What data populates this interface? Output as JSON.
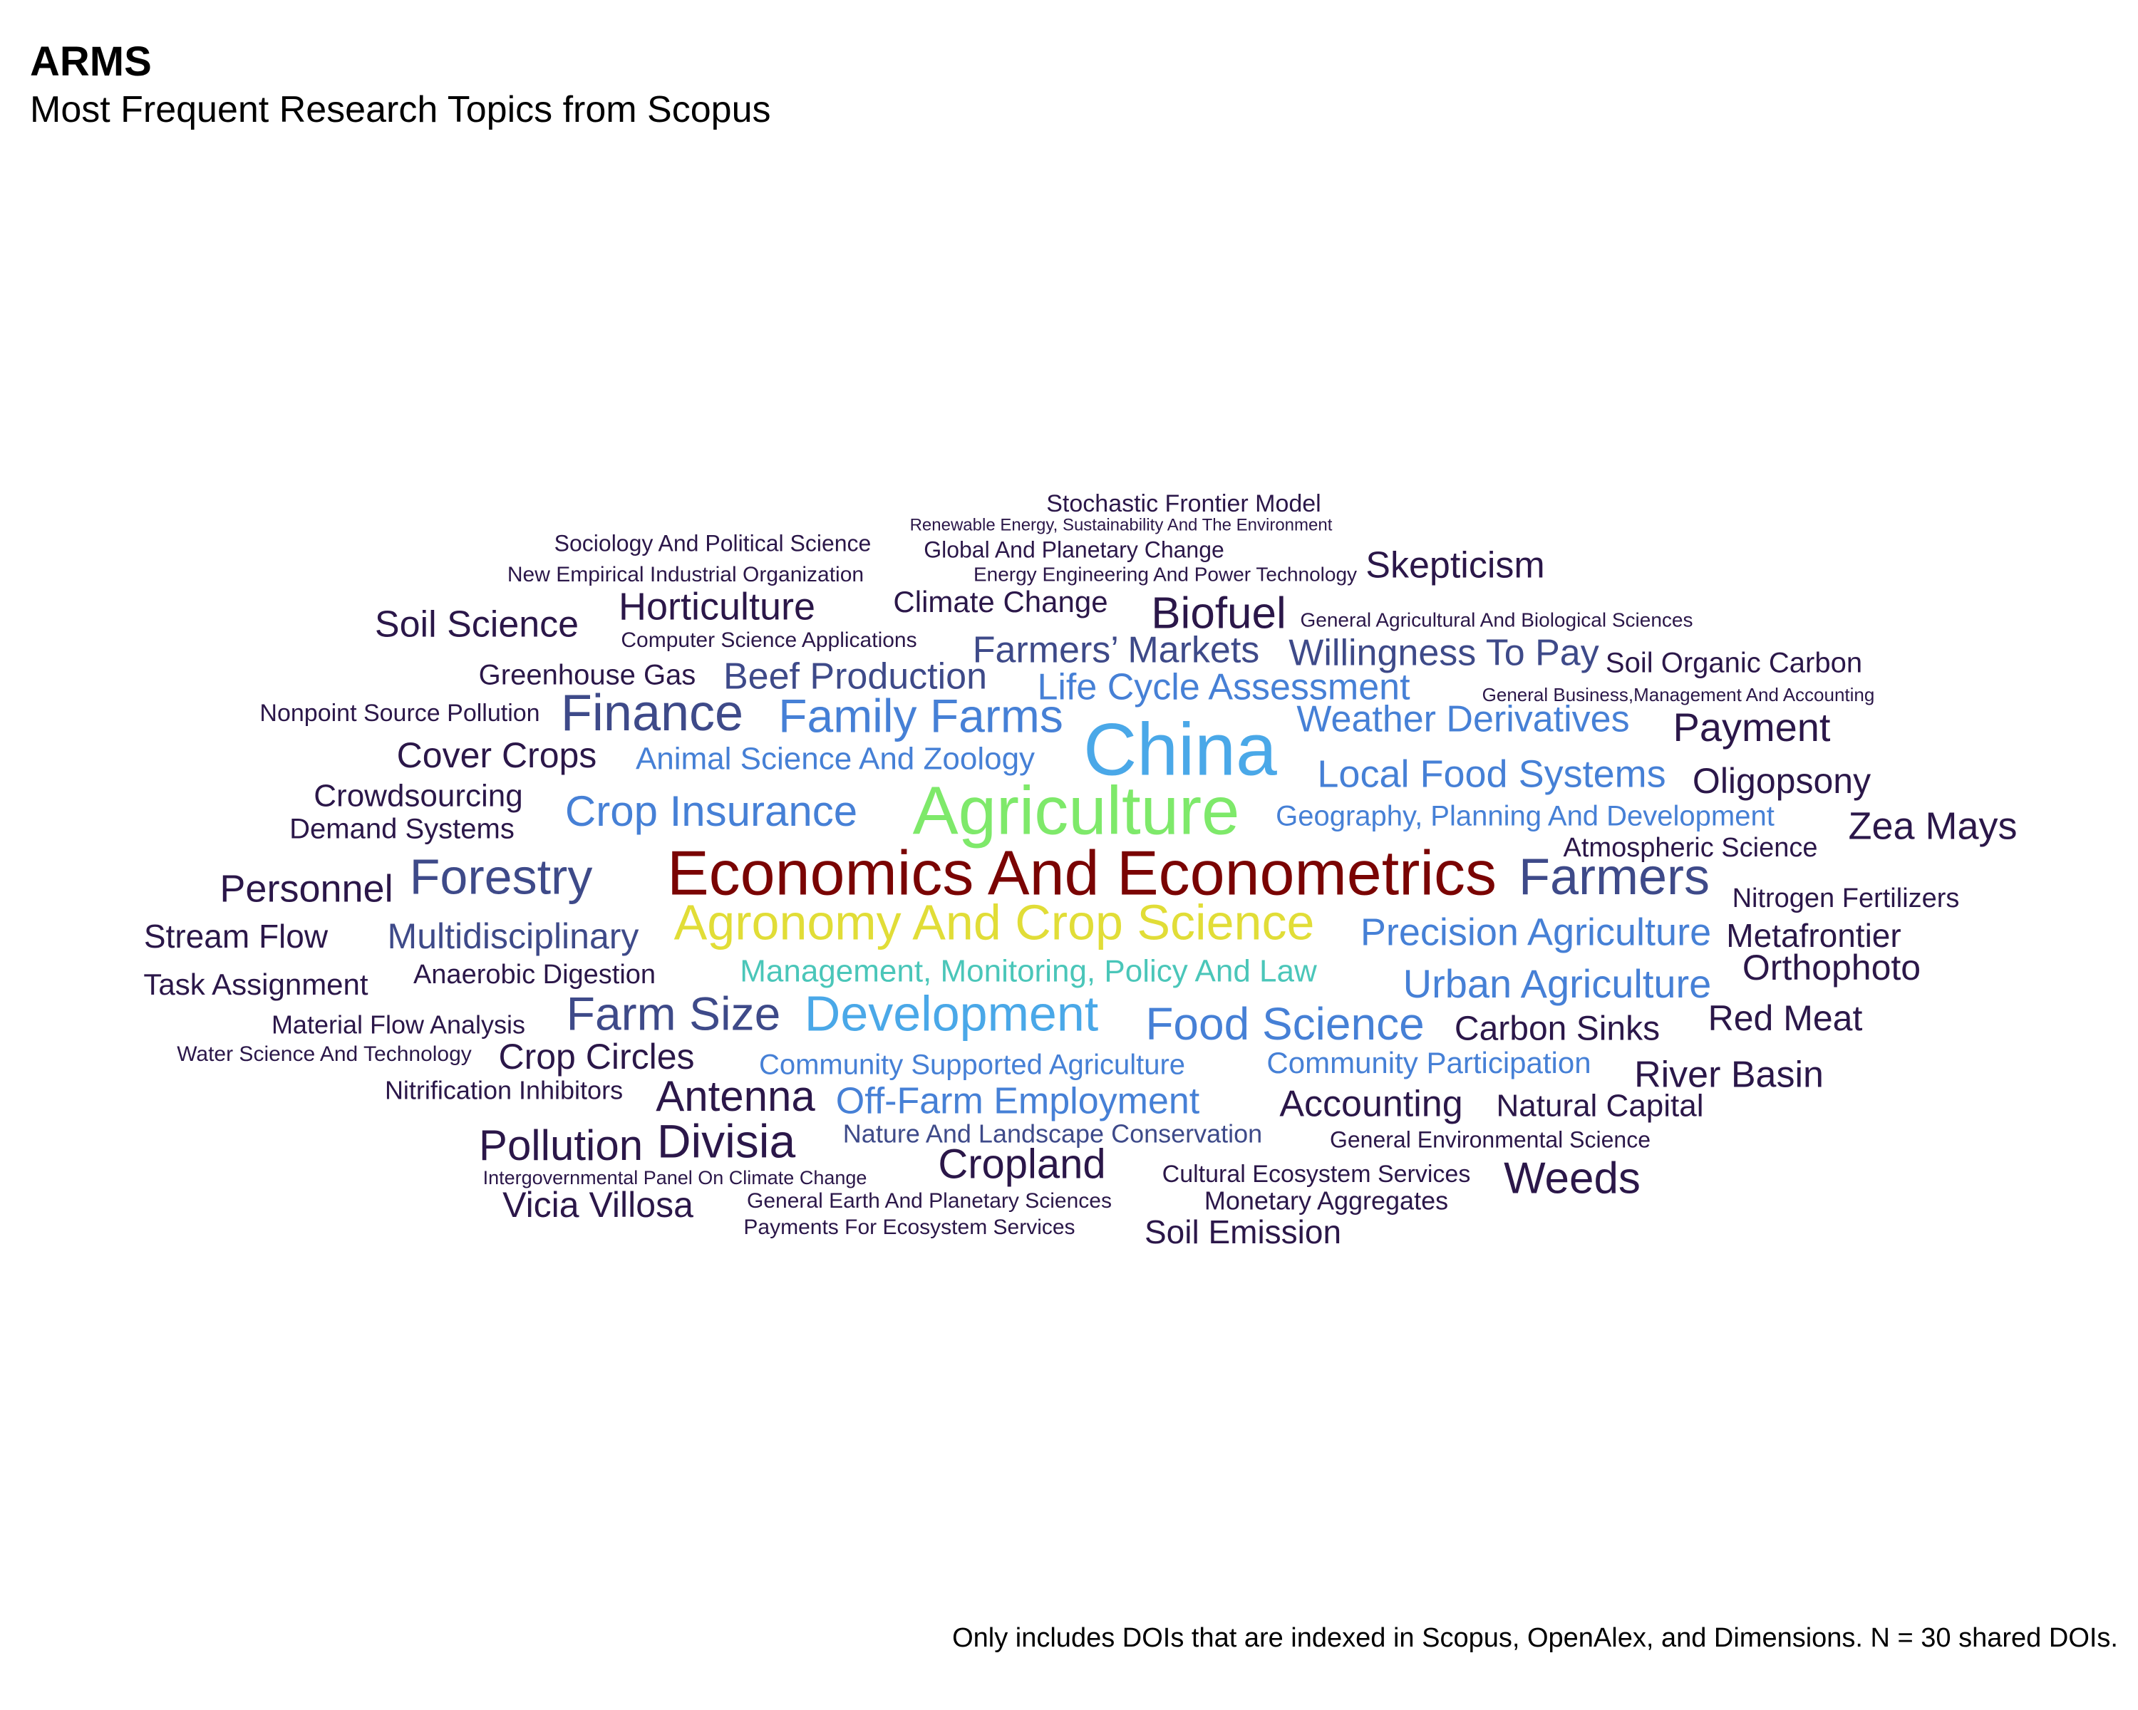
{
  "header": {
    "title": "ARMS",
    "subtitle": "Most Frequent Research Topics from Scopus"
  },
  "footer": {
    "caption": "Only includes DOIs that are indexed in Scopus, OpenAlex, and Dimensions. N = 30 shared DOIs."
  },
  "colors": {
    "darkred": "#7a0403",
    "yellow": "#e1dd37",
    "green": "#7ee96a",
    "teal": "#4ac6b9",
    "lightblue": "#4aa8e8",
    "blue": "#4680d6",
    "indigo": "#3e4a89",
    "darkpurple": "#2b1749"
  },
  "chart_data": {
    "type": "wordcloud",
    "words": [
      {
        "text": "Economics And Econometrics",
        "rank": 1,
        "color": "#7a0403"
      },
      {
        "text": "Agriculture",
        "rank": 2,
        "color": "#7ee96a"
      },
      {
        "text": "Agronomy And Crop Science",
        "rank": 3,
        "color": "#e1dd37"
      },
      {
        "text": "China",
        "rank": 4,
        "color": "#4aa8e8"
      },
      {
        "text": "Management, Monitoring, Policy And Law",
        "rank": 5,
        "color": "#4ac6b9"
      },
      {
        "text": "Development",
        "rank": 6,
        "color": "#4aa8e8"
      },
      {
        "text": "Family Farms",
        "rank": 7,
        "color": "#4680d6"
      },
      {
        "text": "Food Science",
        "rank": 8,
        "color": "#4680d6"
      },
      {
        "text": "Crop Insurance",
        "rank": 9,
        "color": "#4680d6"
      },
      {
        "text": "Local Food Systems",
        "rank": 10,
        "color": "#4680d6"
      },
      {
        "text": "Life Cycle Assessment",
        "rank": 11,
        "color": "#4680d6"
      },
      {
        "text": "Weather Derivatives",
        "rank": 12,
        "color": "#4680d6"
      },
      {
        "text": "Animal Science And Zoology",
        "rank": 13,
        "color": "#4680d6"
      },
      {
        "text": "Geography, Planning And Development",
        "rank": 14,
        "color": "#4680d6"
      },
      {
        "text": "Precision Agriculture",
        "rank": 15,
        "color": "#4680d6"
      },
      {
        "text": "Urban Agriculture",
        "rank": 16,
        "color": "#4680d6"
      },
      {
        "text": "Community Supported Agriculture",
        "rank": 17,
        "color": "#4680d6"
      },
      {
        "text": "Off-Farm Employment",
        "rank": 18,
        "color": "#4680d6"
      },
      {
        "text": "Community Participation",
        "rank": 19,
        "color": "#4680d6"
      },
      {
        "text": "Finance",
        "rank": 20,
        "color": "#3e4a89"
      },
      {
        "text": "Forestry",
        "rank": 21,
        "color": "#3e4a89"
      },
      {
        "text": "Farmers",
        "rank": 22,
        "color": "#3e4a89"
      },
      {
        "text": "Farm Size",
        "rank": 23,
        "color": "#3e4a89"
      },
      {
        "text": "Beef Production",
        "rank": 24,
        "color": "#3e4a89"
      },
      {
        "text": "Farmers’ Markets",
        "rank": 25,
        "color": "#3e4a89"
      },
      {
        "text": "Willingness To Pay",
        "rank": 26,
        "color": "#3e4a89"
      },
      {
        "text": "Multidisciplinary",
        "rank": 27,
        "color": "#3e4a89"
      },
      {
        "text": "Nature And Landscape Conservation",
        "rank": 28,
        "color": "#3e4a89"
      },
      {
        "text": "Biofuel",
        "rank": 29,
        "color": "#2b1749"
      },
      {
        "text": "Skepticism",
        "rank": 30,
        "color": "#2b1749"
      },
      {
        "text": "Payment",
        "rank": 31,
        "color": "#2b1749"
      },
      {
        "text": "Oligopsony",
        "rank": 32,
        "color": "#2b1749"
      },
      {
        "text": "Zea Mays",
        "rank": 33,
        "color": "#2b1749"
      },
      {
        "text": "Horticulture",
        "rank": 34,
        "color": "#2b1749"
      },
      {
        "text": "Soil Science",
        "rank": 35,
        "color": "#2b1749"
      },
      {
        "text": "Cover Crops",
        "rank": 36,
        "color": "#2b1749"
      },
      {
        "text": "Personnel",
        "rank": 37,
        "color": "#2b1749"
      },
      {
        "text": "Antenna",
        "rank": 38,
        "color": "#2b1749"
      },
      {
        "text": "Divisia",
        "rank": 39,
        "color": "#2b1749"
      },
      {
        "text": "Pollution",
        "rank": 40,
        "color": "#2b1749"
      },
      {
        "text": "Cropland",
        "rank": 41,
        "color": "#2b1749"
      },
      {
        "text": "Weeds",
        "rank": 42,
        "color": "#2b1749"
      },
      {
        "text": "Red Meat",
        "rank": 43,
        "color": "#2b1749"
      },
      {
        "text": "River Basin",
        "rank": 44,
        "color": "#2b1749"
      },
      {
        "text": "Accounting",
        "rank": 45,
        "color": "#2b1749"
      },
      {
        "text": "Orthophoto",
        "rank": 46,
        "color": "#2b1749"
      },
      {
        "text": "Metafrontier",
        "rank": 47,
        "color": "#2b1749"
      },
      {
        "text": "Carbon Sinks",
        "rank": 48,
        "color": "#2b1749"
      },
      {
        "text": "Natural Capital",
        "rank": 49,
        "color": "#2b1749"
      },
      {
        "text": "Crop Circles",
        "rank": 50,
        "color": "#2b1749"
      },
      {
        "text": "Vicia Villosa",
        "rank": 51,
        "color": "#2b1749"
      },
      {
        "text": "Soil Emission",
        "rank": 52,
        "color": "#2b1749"
      },
      {
        "text": "Climate Change",
        "rank": 53,
        "color": "#2b1749"
      },
      {
        "text": "Crowdsourcing",
        "rank": 54,
        "color": "#2b1749"
      },
      {
        "text": "Stream Flow",
        "rank": 55,
        "color": "#2b1749"
      },
      {
        "text": "Greenhouse Gas",
        "rank": 56,
        "color": "#2b1749"
      },
      {
        "text": "Demand Systems",
        "rank": 57,
        "color": "#2b1749"
      },
      {
        "text": "Soil Organic Carbon",
        "rank": 58,
        "color": "#2b1749"
      },
      {
        "text": "Atmospheric Science",
        "rank": 59,
        "color": "#2b1749"
      },
      {
        "text": "Nitrogen Fertilizers",
        "rank": 60,
        "color": "#2b1749"
      },
      {
        "text": "Task Assignment",
        "rank": 61,
        "color": "#2b1749"
      },
      {
        "text": "Anaerobic Digestion",
        "rank": 62,
        "color": "#2b1749"
      },
      {
        "text": "Stochastic Frontier Model",
        "rank": 63,
        "color": "#2b1749"
      },
      {
        "text": "Sociology And Political Science",
        "rank": 64,
        "color": "#2b1749"
      },
      {
        "text": "Global And Planetary Change",
        "rank": 65,
        "color": "#2b1749"
      },
      {
        "text": "Material Flow Analysis",
        "rank": 66,
        "color": "#2b1749"
      },
      {
        "text": "Nitrification Inhibitors",
        "rank": 67,
        "color": "#2b1749"
      },
      {
        "text": "Nonpoint Source Pollution",
        "rank": 68,
        "color": "#2b1749"
      },
      {
        "text": "Computer Science Applications",
        "rank": 69,
        "color": "#2b1749"
      },
      {
        "text": "New Empirical Industrial Organization",
        "rank": 70,
        "color": "#2b1749"
      },
      {
        "text": "Energy Engineering And Power Technology",
        "rank": 71,
        "color": "#2b1749"
      },
      {
        "text": "Cultural Ecosystem Services",
        "rank": 72,
        "color": "#2b1749"
      },
      {
        "text": "Monetary Aggregates",
        "rank": 73,
        "color": "#2b1749"
      },
      {
        "text": "General Environmental Science",
        "rank": 74,
        "color": "#2b1749"
      },
      {
        "text": "Water Science And Technology",
        "rank": 75,
        "color": "#2b1749"
      },
      {
        "text": "General Agricultural And Biological Sciences",
        "rank": 76,
        "color": "#2b1749"
      },
      {
        "text": "General Earth And Planetary Sciences",
        "rank": 77,
        "color": "#2b1749"
      },
      {
        "text": "Payments For Ecosystem Services",
        "rank": 78,
        "color": "#2b1749"
      },
      {
        "text": "General Business,Management And Accounting",
        "rank": 79,
        "color": "#2b1749"
      },
      {
        "text": "Renewable Energy, Sustainability And The Environment",
        "rank": 80,
        "color": "#2b1749"
      },
      {
        "text": "Intergovernmental Panel On Climate Change",
        "rank": 81,
        "color": "#2b1749"
      }
    ]
  }
}
